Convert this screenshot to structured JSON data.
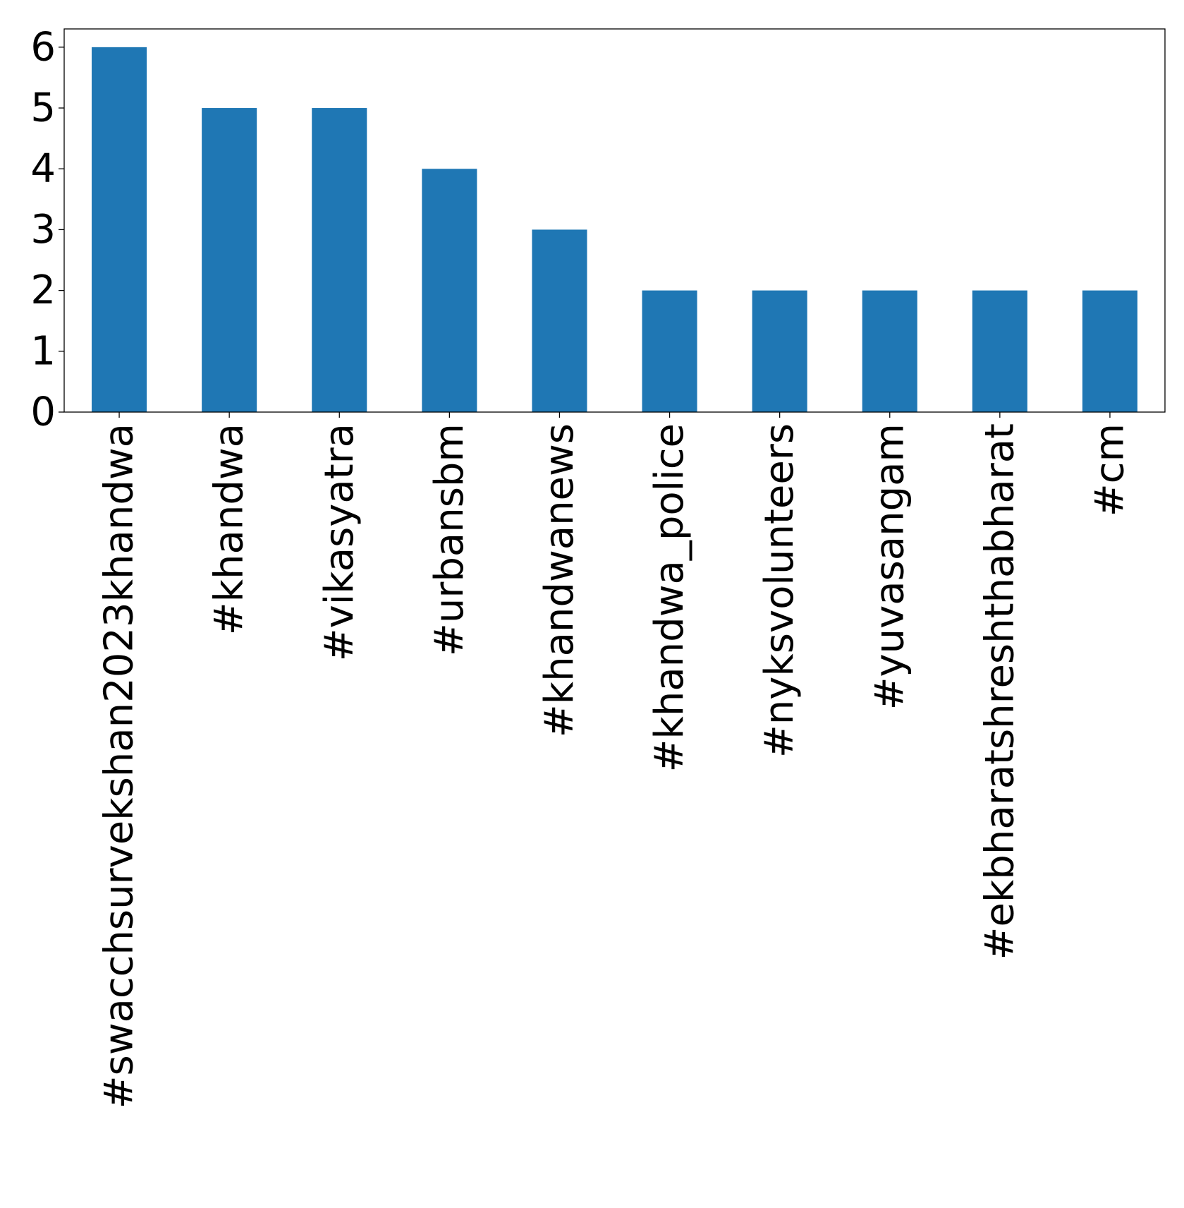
{
  "chart_data": {
    "type": "bar",
    "categories": [
      "#swacchsurvekshan2023khandwa",
      "#khandwa",
      "#vikasyatra",
      "#urbansbm",
      "#khandwanews",
      "#khandwa_police",
      "#nyksvolunteers",
      "#yuvasangam",
      "#ekbharatshreshthabharat",
      "#cm"
    ],
    "values": [
      6,
      5,
      5,
      4,
      3,
      2,
      2,
      2,
      2,
      2
    ],
    "yticks": [
      0,
      1,
      2,
      3,
      4,
      5,
      6
    ],
    "ylim": [
      0,
      6.3
    ],
    "title": "",
    "xlabel": "",
    "ylabel": "",
    "grid": false,
    "legend": "none",
    "bar_color": "#1f77b4"
  }
}
